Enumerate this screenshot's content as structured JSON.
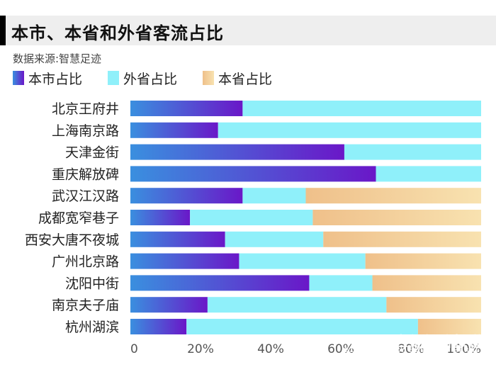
{
  "header": {
    "title": "本市、本省和外省客流占比",
    "source": "数据来源:智慧足迹"
  },
  "watermark": {
    "main": "21世纪经济报道",
    "sub": "21ST CENTURY BUSINESS HERALD"
  },
  "colors": {
    "local_start": "#3a8fdf",
    "local_end": "#6a17c8",
    "out_of_province": "#8ff0fa",
    "province_start": "#efc08a",
    "province_end": "#f8e2b0"
  },
  "chart_data": {
    "type": "bar",
    "orientation": "horizontal",
    "stacked": true,
    "title": "本市、本省和外省客流占比",
    "categories": [
      "北京王府井",
      "上海南京路",
      "天津金街",
      "重庆解放碑",
      "武汉江汉路",
      "成都宽窄巷子",
      "西安大唐不夜城",
      "广州北京路",
      "沈阳中街",
      "南京夫子庙",
      "杭州湖滨"
    ],
    "series": [
      {
        "name": "本市占比",
        "values": [
          32,
          25,
          61,
          70,
          32,
          17,
          27,
          31,
          51,
          22,
          16
        ]
      },
      {
        "name": "外省占比",
        "values": [
          68,
          75,
          39,
          30,
          18,
          35,
          28,
          36,
          18,
          51,
          66
        ]
      },
      {
        "name": "本省占比",
        "values": [
          0,
          0,
          0,
          0,
          50,
          48,
          45,
          33,
          31,
          27,
          18
        ]
      }
    ],
    "xlim": [
      0,
      100
    ],
    "xticks": [
      "0",
      "20%",
      "40%",
      "60%",
      "80%",
      "100%"
    ],
    "legend": "top-left",
    "grid": false
  }
}
